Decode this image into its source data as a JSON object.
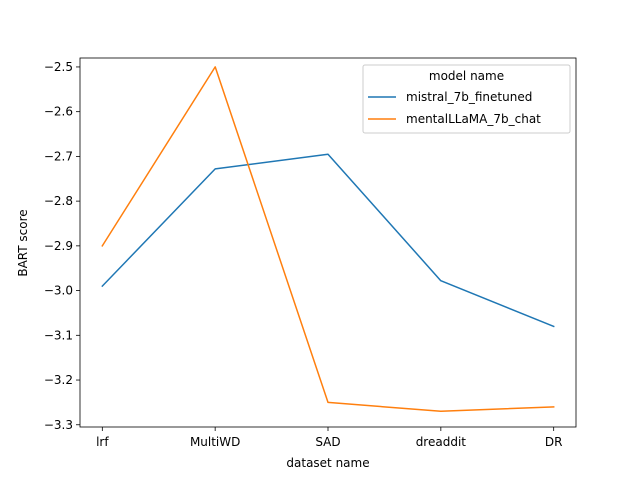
{
  "chart_data": {
    "type": "line",
    "title": "",
    "xlabel": "dataset name",
    "ylabel": "BART score",
    "categories": [
      "lrf",
      "MultiWD",
      "SAD",
      "dreaddit",
      "DR"
    ],
    "ylim": [
      -3.305,
      -2.48
    ],
    "yticks": [
      -2.5,
      -2.6,
      -2.7,
      -2.8,
      -2.9,
      -3.0,
      -3.1,
      -3.2,
      -3.3
    ],
    "ytick_labels": [
      "−2.5",
      "−2.6",
      "−2.7",
      "−2.8",
      "−2.9",
      "−3.0",
      "−3.1",
      "−3.2",
      "−3.3"
    ],
    "grid": false,
    "legend": {
      "title": "model name",
      "placement": "top-right"
    },
    "series": [
      {
        "name": "mistral_7b_finetuned",
        "color": "#1f77b4",
        "values": [
          -2.99,
          -2.728,
          -2.695,
          -2.978,
          -3.08
        ]
      },
      {
        "name": "mentalLLaMA_7b_chat",
        "color": "#ff7f0e",
        "values": [
          -2.9,
          -2.5,
          -3.25,
          -3.27,
          -3.26
        ]
      }
    ]
  }
}
